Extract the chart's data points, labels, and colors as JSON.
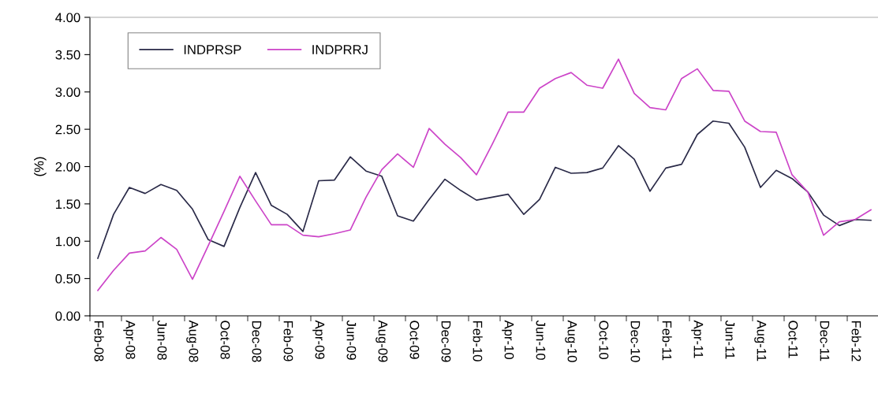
{
  "chart_data": {
    "type": "line",
    "ylabel": "(%)",
    "categories": [
      "Feb-08",
      null,
      "Apr-08",
      null,
      "Jun-08",
      null,
      "Aug-08",
      null,
      "Oct-08",
      null,
      "Dec-08",
      null,
      "Feb-09",
      null,
      "Apr-09",
      null,
      "Jun-09",
      null,
      "Aug-09",
      null,
      "Oct-09",
      null,
      "Dec-09",
      null,
      "Feb-10",
      null,
      "Apr-10",
      null,
      "Jun-10",
      null,
      "Aug-10",
      null,
      "Oct-10",
      null,
      "Dec-10",
      null,
      "Feb-11",
      null,
      "Apr-11",
      null,
      "Jun-11",
      null,
      "Aug-11",
      null,
      "Oct-11",
      null,
      "Dec-11",
      null,
      "Feb-12",
      null
    ],
    "series": [
      {
        "name": "INDPRSP",
        "color": "#2a2a48",
        "values": [
          0.77,
          1.36,
          1.72,
          1.64,
          1.76,
          1.68,
          1.43,
          1.02,
          0.93,
          1.45,
          1.92,
          1.48,
          1.36,
          1.13,
          1.81,
          1.82,
          2.13,
          1.94,
          1.87,
          1.34,
          1.27,
          1.56,
          1.83,
          1.68,
          1.55,
          1.59,
          1.63,
          1.36,
          1.56,
          1.99,
          1.91,
          1.92,
          1.98,
          2.28,
          2.1,
          1.67,
          1.98,
          2.03,
          2.43,
          2.61,
          2.58,
          2.26,
          1.72,
          1.95,
          1.84,
          1.66,
          1.35,
          1.21,
          1.29,
          1.28
        ]
      },
      {
        "name": "INDPRRJ",
        "color": "#cc44c8",
        "values": [
          0.34,
          0.61,
          0.84,
          0.87,
          1.05,
          0.89,
          0.49,
          0.94,
          1.4,
          1.87,
          1.54,
          1.22,
          1.22,
          1.08,
          1.06,
          1.1,
          1.15,
          1.59,
          1.96,
          2.17,
          1.99,
          2.51,
          2.3,
          2.12,
          1.89,
          2.3,
          2.73,
          2.73,
          3.05,
          3.18,
          3.26,
          3.09,
          3.05,
          3.44,
          2.98,
          2.79,
          2.76,
          3.18,
          3.31,
          3.02,
          3.01,
          2.61,
          2.47,
          2.46,
          1.89,
          1.66,
          1.08,
          1.26,
          1.29,
          1.42
        ]
      }
    ],
    "ylim": [
      0,
      4
    ],
    "yticks": [
      {
        "value": 0,
        "label": "0.00"
      },
      {
        "value": 0.5,
        "label": "0.50"
      },
      {
        "value": 1,
        "label": "1.00"
      },
      {
        "value": 1.5,
        "label": "1.50"
      },
      {
        "value": 2,
        "label": "2.00"
      },
      {
        "value": 2.5,
        "label": "2.50"
      },
      {
        "value": 3,
        "label": "3.00"
      },
      {
        "value": 3.5,
        "label": "3.50"
      },
      {
        "value": 4,
        "label": "4.00"
      }
    ],
    "grid": false,
    "legend": "top left",
    "marker": "none",
    "line_style": "solid"
  }
}
